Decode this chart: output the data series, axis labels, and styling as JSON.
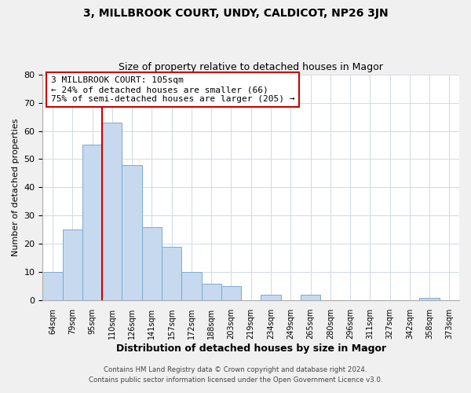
{
  "title": "3, MILLBROOK COURT, UNDY, CALDICOT, NP26 3JN",
  "subtitle": "Size of property relative to detached houses in Magor",
  "xlabel": "Distribution of detached houses by size in Magor",
  "ylabel": "Number of detached properties",
  "bar_color": "#c6d9ee",
  "bar_edge_color": "#7aaad0",
  "categories": [
    "64sqm",
    "79sqm",
    "95sqm",
    "110sqm",
    "126sqm",
    "141sqm",
    "157sqm",
    "172sqm",
    "188sqm",
    "203sqm",
    "219sqm",
    "234sqm",
    "249sqm",
    "265sqm",
    "280sqm",
    "296sqm",
    "311sqm",
    "327sqm",
    "342sqm",
    "358sqm",
    "373sqm"
  ],
  "values": [
    10,
    25,
    55,
    63,
    48,
    26,
    19,
    10,
    6,
    5,
    0,
    2,
    0,
    2,
    0,
    0,
    0,
    0,
    0,
    1,
    0
  ],
  "ylim": [
    0,
    80
  ],
  "yticks": [
    0,
    10,
    20,
    30,
    40,
    50,
    60,
    70,
    80
  ],
  "reference_line_color": "#cc0000",
  "annotation_text": "3 MILLBROOK COURT: 105sqm\n← 24% of detached houses are smaller (66)\n75% of semi-detached houses are larger (205) →",
  "annotation_box_color": "#ffffff",
  "annotation_box_edge_color": "#cc0000",
  "footer_line1": "Contains HM Land Registry data © Crown copyright and database right 2024.",
  "footer_line2": "Contains public sector information licensed under the Open Government Licence v3.0.",
  "background_color": "#f0f0f0",
  "plot_background_color": "#ffffff",
  "grid_color": "#d0d8e8"
}
